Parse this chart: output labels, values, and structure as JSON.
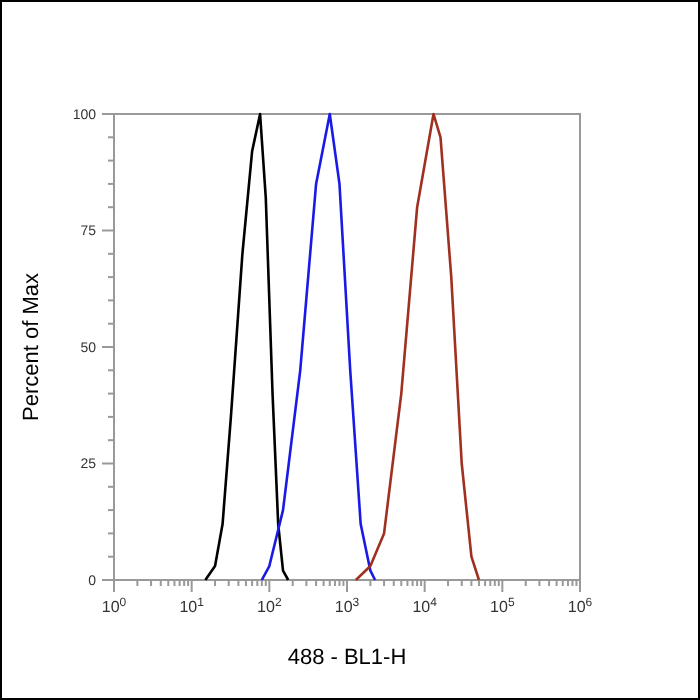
{
  "chart_data": {
    "type": "line",
    "xlabel": "488 - BL1-H",
    "ylabel": "Percent of Max",
    "log": "x",
    "marker": "none",
    "line_style": "solid",
    "xlim": [
      1,
      1000000
    ],
    "ylim": [
      0,
      100
    ],
    "xticks": [
      {
        "value": 1,
        "label": "10$^{0}$"
      },
      {
        "value": 2,
        "label": null
      },
      {
        "value": 3,
        "label": null
      },
      {
        "value": 4,
        "label": null
      },
      {
        "value": 5,
        "label": null
      },
      {
        "value": 6,
        "label": null
      },
      {
        "value": 7,
        "label": null
      },
      {
        "value": 8,
        "label": null
      },
      {
        "value": 9,
        "label": null
      },
      {
        "value": 10,
        "label": "10$^{1}$"
      },
      {
        "value": 20,
        "label": null
      },
      {
        "value": 30,
        "label": null
      },
      {
        "value": 40,
        "label": null
      },
      {
        "value": 50,
        "label": null
      },
      {
        "value": 60,
        "label": null
      },
      {
        "value": 70,
        "label": null
      },
      {
        "value": 80,
        "label": null
      },
      {
        "value": 90,
        "label": null
      },
      {
        "value": 100,
        "label": "10$^{2}$"
      },
      {
        "value": 200,
        "label": null
      },
      {
        "value": 300,
        "label": null
      },
      {
        "value": 400,
        "label": null
      },
      {
        "value": 500,
        "label": null
      },
      {
        "value": 600,
        "label": null
      },
      {
        "value": 700,
        "label": null
      },
      {
        "value": 800,
        "label": null
      },
      {
        "value": 900,
        "label": null
      },
      {
        "value": 1000,
        "label": "10$^{3}$"
      },
      {
        "value": 2000,
        "label": null
      },
      {
        "value": 3000,
        "label": null
      },
      {
        "value": 4000,
        "label": null
      },
      {
        "value": 5000,
        "label": null
      },
      {
        "value": 6000,
        "label": null
      },
      {
        "value": 7000,
        "label": null
      },
      {
        "value": 8000,
        "label": null
      },
      {
        "value": 9000,
        "label": null
      },
      {
        "value": 10000,
        "label": "10$^{4}$"
      },
      {
        "value": 20000,
        "label": null
      },
      {
        "value": 30000,
        "label": null
      },
      {
        "value": 40000,
        "label": null
      },
      {
        "value": 50000,
        "label": null
      },
      {
        "value": 60000,
        "label": null
      },
      {
        "value": 70000,
        "label": null
      },
      {
        "value": 80000,
        "label": null
      },
      {
        "value": 90000,
        "label": null
      },
      {
        "value": 100000,
        "label": "10$^{5}$"
      },
      {
        "value": 200000,
        "label": null
      },
      {
        "value": 300000,
        "label": null
      },
      {
        "value": 400000,
        "label": null
      },
      {
        "value": 500000,
        "label": null
      },
      {
        "value": 600000,
        "label": null
      },
      {
        "value": 700000,
        "label": null
      },
      {
        "value": 800000,
        "label": null
      },
      {
        "value": 900000,
        "label": null
      },
      {
        "value": 1000000,
        "label": "10$^{6}$"
      }
    ],
    "yticks": [
      0,
      {
        "value": 5,
        "label": null
      },
      {
        "value": 10,
        "label": null
      },
      {
        "value": 15,
        "label": null
      },
      {
        "value": 20,
        "label": null
      },
      25,
      {
        "value": 30,
        "label": null
      },
      {
        "value": 35,
        "label": null
      },
      {
        "value": 40,
        "label": null
      },
      {
        "value": 45,
        "label": null
      },
      50,
      {
        "value": 55,
        "label": null
      },
      {
        "value": 60,
        "label": null
      },
      {
        "value": 65,
        "label": null
      },
      {
        "value": 70,
        "label": null
      },
      75,
      {
        "value": 80,
        "label": null
      },
      {
        "value": 85,
        "label": null
      },
      {
        "value": 90,
        "label": null
      },
      {
        "value": 95,
        "label": null
      },
      100
    ],
    "series": [
      {
        "color": "#000000",
        "x": [
          15,
          20,
          25,
          32,
          45,
          60,
          76,
          90,
          110,
          130,
          150,
          175
        ],
        "values": [
          0,
          3,
          12,
          35,
          70,
          92,
          100,
          82,
          40,
          12,
          2,
          0
        ]
      },
      {
        "color": "#1a1ae6",
        "x": [
          80,
          100,
          150,
          250,
          400,
          600,
          800,
          1100,
          1500,
          2000,
          2300
        ],
        "values": [
          0,
          3,
          15,
          45,
          85,
          100,
          85,
          45,
          12,
          2,
          0
        ]
      },
      {
        "color": "#a03020",
        "x": [
          1300,
          2000,
          3000,
          5000,
          8000,
          13000,
          16000,
          22000,
          30000,
          40000,
          50000
        ],
        "values": [
          0,
          3,
          10,
          40,
          80,
          100,
          95,
          65,
          25,
          5,
          0
        ]
      }
    ]
  }
}
